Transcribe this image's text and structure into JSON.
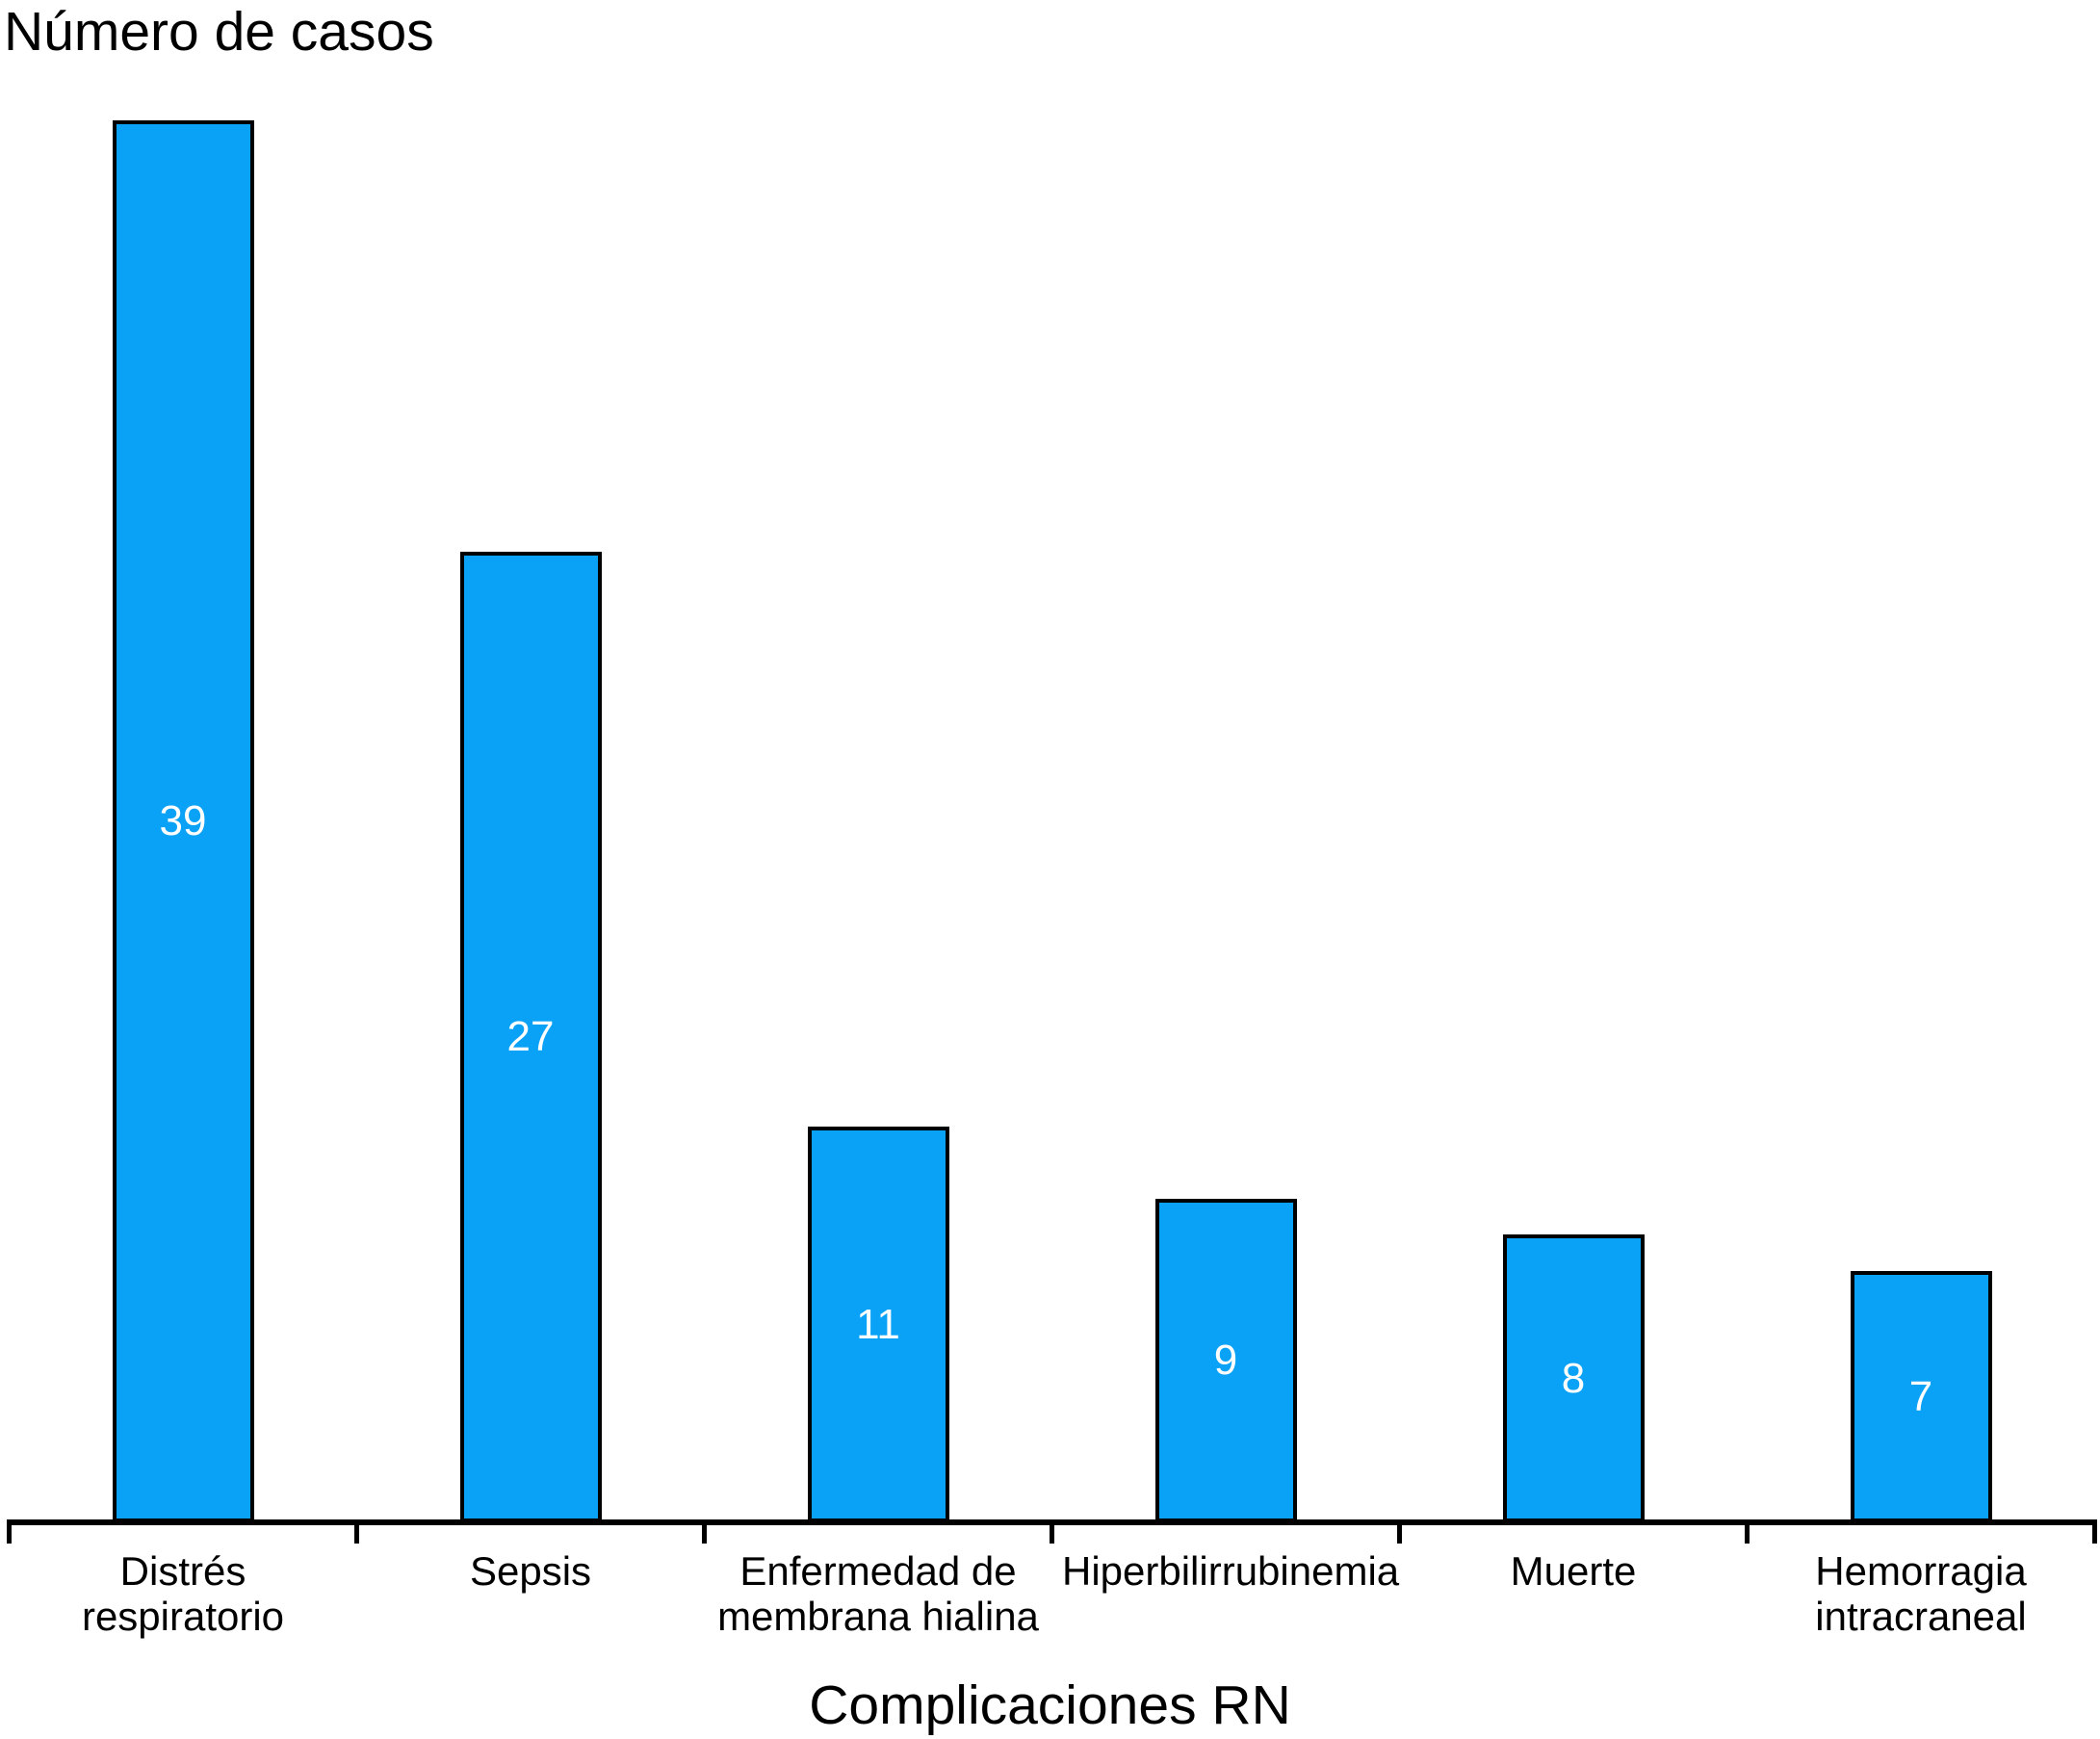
{
  "chart_data": {
    "type": "bar",
    "ylabel": "Número de casos",
    "xlabel": "Complicaciones RN",
    "categories": [
      "Distrés respiratorio",
      "Sepsis",
      "Enfermedad de membrana hialina",
      "Hiperbilirrubinemia",
      "Muerte",
      "Hemorragia intracraneal"
    ],
    "values": [
      39,
      27,
      11,
      9,
      8,
      7
    ],
    "ylim": [
      0,
      39
    ],
    "grid": false,
    "legend": "none",
    "bar_color": "#0AA2F6",
    "bar_border_color": "#000000",
    "value_label_color": "#FFFFFF",
    "axis_color": "#000000",
    "text_color": "#000000"
  }
}
